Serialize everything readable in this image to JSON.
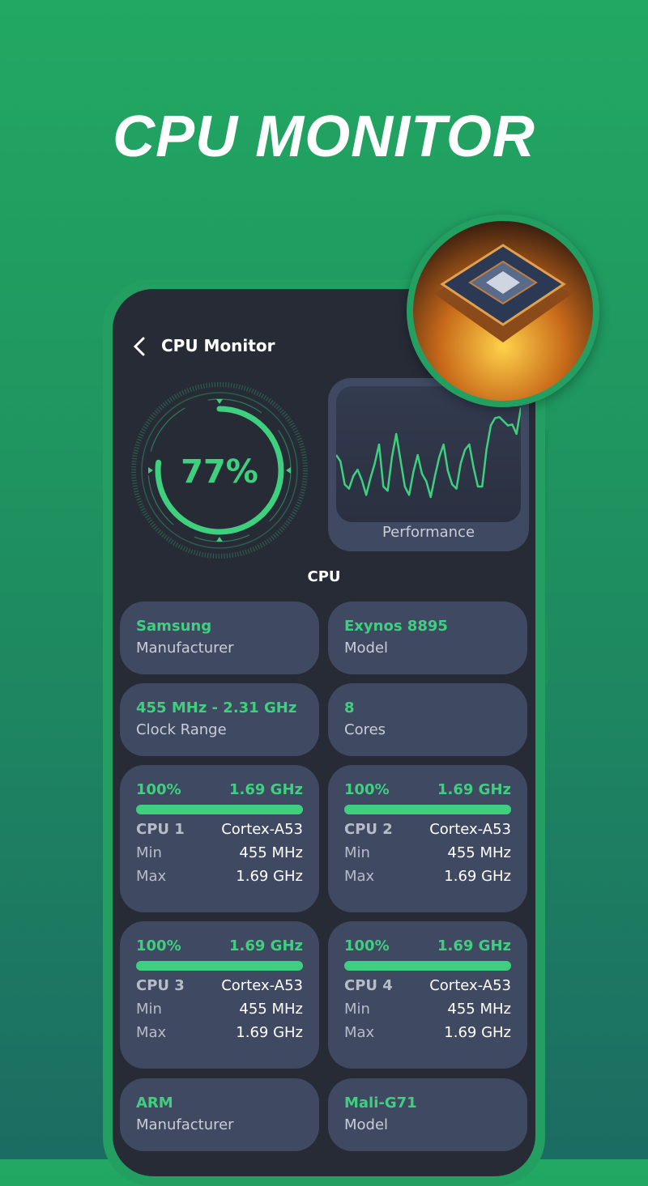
{
  "headline": "CPU MONITOR",
  "header": {
    "title": "CPU Monitor",
    "back_icon": "chevron-left-icon"
  },
  "gauge": {
    "value_label": "77%",
    "percent": 77
  },
  "performance": {
    "label": "Performance",
    "values": [
      50,
      44,
      22,
      18,
      30,
      36,
      26,
      12,
      28,
      42,
      60,
      20,
      16,
      48,
      70,
      45,
      20,
      12,
      34,
      50,
      32,
      25,
      10,
      30,
      48,
      60,
      35,
      22,
      18,
      42,
      55,
      60,
      38,
      20,
      20,
      55,
      78,
      85,
      86,
      82,
      78,
      79,
      70,
      95
    ]
  },
  "section_title": "CPU",
  "info_cards": [
    {
      "value": "Samsung",
      "label": "Manufacturer"
    },
    {
      "value": "Exynos 8895",
      "label": "Model"
    },
    {
      "value": "455 MHz - 2.31 GHz",
      "label": "Clock Range"
    },
    {
      "value": "8",
      "label": "Cores"
    }
  ],
  "cores": [
    {
      "usage": "100%",
      "usage_fraction": 1.0,
      "freq": "1.69 GHz",
      "name": "CPU 1",
      "arch": "Cortex-A53",
      "min_label": "Min",
      "min": "455 MHz",
      "max_label": "Max",
      "max": "1.69 GHz"
    },
    {
      "usage": "100%",
      "usage_fraction": 1.0,
      "freq": "1.69 GHz",
      "name": "CPU 2",
      "arch": "Cortex-A53",
      "min_label": "Min",
      "min": "455 MHz",
      "max_label": "Max",
      "max": "1.69 GHz"
    },
    {
      "usage": "100%",
      "usage_fraction": 1.0,
      "freq": "1.69 GHz",
      "name": "CPU 3",
      "arch": "Cortex-A53",
      "min_label": "Min",
      "min": "455 MHz",
      "max_label": "Max",
      "max": "1.69 GHz"
    },
    {
      "usage": "100%",
      "usage_fraction": 1.0,
      "freq": "1.69 GHz",
      "name": "CPU 4",
      "arch": "Cortex-A53",
      "min_label": "Min",
      "min": "455 MHz",
      "max_label": "Max",
      "max": "1.69 GHz"
    }
  ],
  "gpu_cards": [
    {
      "value": "ARM",
      "label": "Manufacturer"
    },
    {
      "value": "Mali-G71",
      "label": "Model"
    }
  ],
  "colors": {
    "accent": "#3ed07f",
    "card": "#3f4a62",
    "screen": "#262b36",
    "frame": "#23a061"
  }
}
